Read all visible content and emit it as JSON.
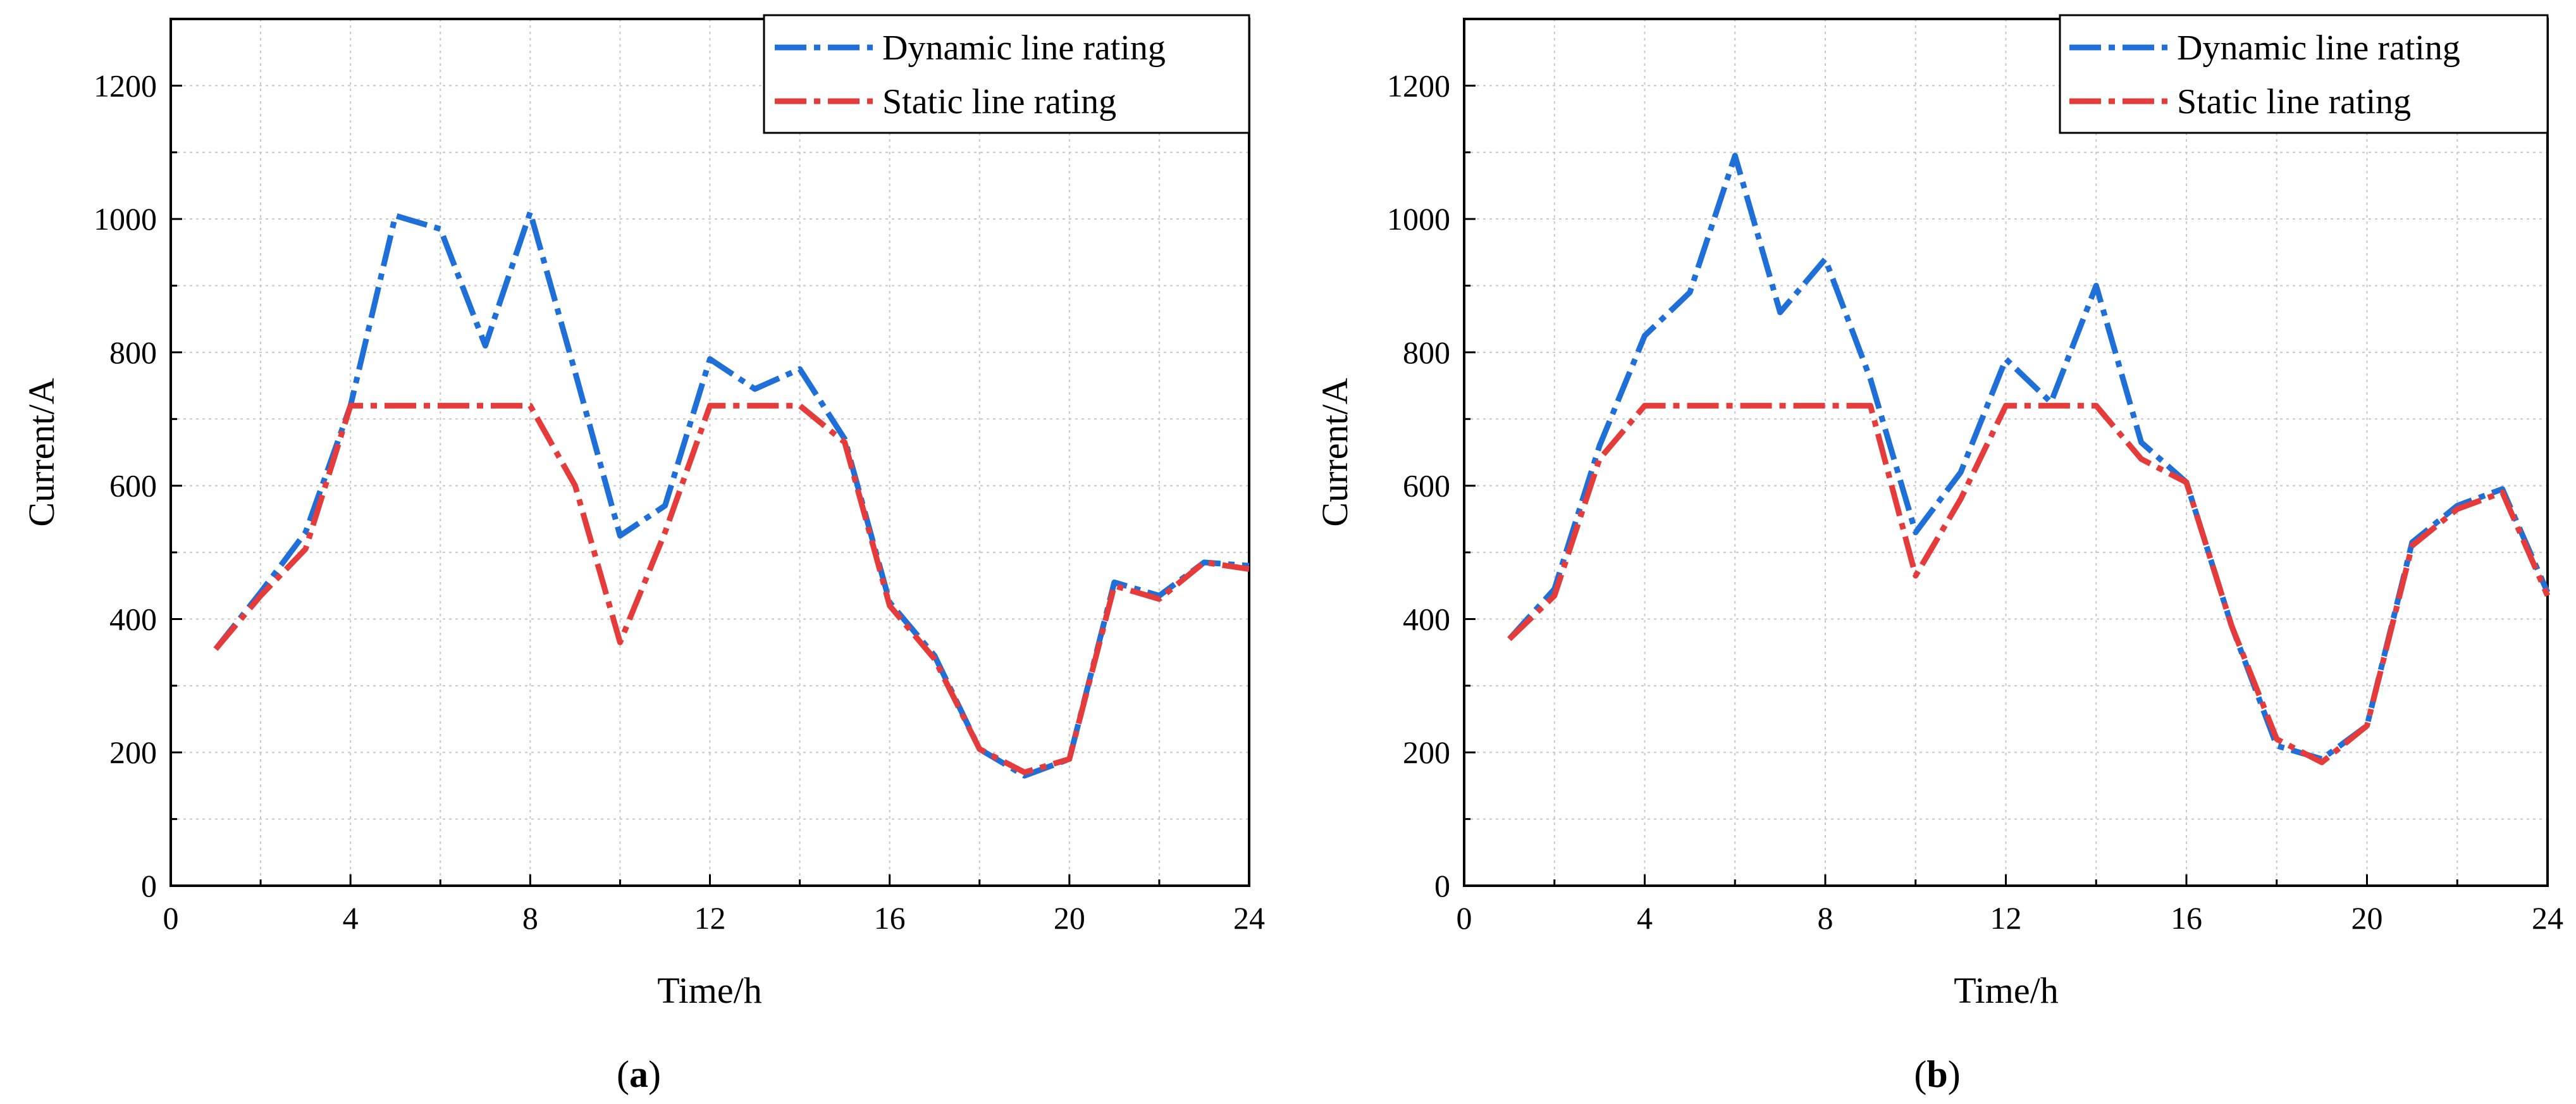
{
  "chart_data": [
    {
      "type": "line",
      "panel_label": "a",
      "xlabel": "Time/h",
      "ylabel": "Current/A",
      "xlim": [
        0,
        24
      ],
      "ylim": [
        0,
        1300
      ],
      "xticks": [
        0,
        4,
        8,
        12,
        16,
        20,
        24
      ],
      "yticks": [
        0,
        200,
        400,
        600,
        800,
        1000,
        1200
      ],
      "grid": true,
      "legend_position": "top-right",
      "series": [
        {
          "name": "Dynamic line rating",
          "color": "#1f6fd8",
          "style": "dash-dot",
          "x": [
            1,
            2,
            3,
            4,
            5,
            6,
            7,
            8,
            9,
            10,
            11,
            12,
            13,
            14,
            15,
            16,
            17,
            18,
            19,
            20,
            21,
            22,
            23,
            24
          ],
          "values": [
            355,
            440,
            530,
            720,
            1005,
            985,
            810,
            1010,
            770,
            525,
            570,
            790,
            745,
            775,
            670,
            425,
            345,
            205,
            165,
            190,
            455,
            435,
            485,
            480
          ]
        },
        {
          "name": "Static line rating",
          "color": "#e63b3b",
          "style": "dash-dot",
          "x": [
            1,
            2,
            3,
            4,
            5,
            6,
            7,
            8,
            9,
            10,
            11,
            12,
            13,
            14,
            15,
            16,
            17,
            18,
            19,
            20,
            21,
            22,
            23,
            24
          ],
          "values": [
            355,
            435,
            505,
            720,
            720,
            720,
            720,
            720,
            600,
            365,
            530,
            720,
            720,
            720,
            665,
            420,
            340,
            205,
            170,
            190,
            450,
            430,
            485,
            475
          ]
        }
      ]
    },
    {
      "type": "line",
      "panel_label": "b",
      "xlabel": "Time/h",
      "ylabel": "Current/A",
      "xlim": [
        0,
        24
      ],
      "ylim": [
        0,
        1300
      ],
      "xticks": [
        0,
        4,
        8,
        12,
        16,
        20,
        24
      ],
      "yticks": [
        0,
        200,
        400,
        600,
        800,
        1000,
        1200
      ],
      "grid": true,
      "legend_position": "top-right",
      "series": [
        {
          "name": "Dynamic line rating",
          "color": "#1f6fd8",
          "style": "dash-dot",
          "x": [
            1,
            2,
            3,
            4,
            5,
            6,
            7,
            8,
            9,
            10,
            11,
            12,
            13,
            14,
            15,
            16,
            17,
            18,
            19,
            20,
            21,
            22,
            23,
            24
          ],
          "values": [
            370,
            445,
            660,
            825,
            890,
            1095,
            860,
            940,
            760,
            530,
            620,
            790,
            725,
            900,
            665,
            605,
            390,
            210,
            190,
            240,
            515,
            570,
            595,
            440
          ]
        },
        {
          "name": "Static line rating",
          "color": "#e63b3b",
          "style": "dash-dot",
          "x": [
            1,
            2,
            3,
            4,
            5,
            6,
            7,
            8,
            9,
            10,
            11,
            12,
            13,
            14,
            15,
            16,
            17,
            18,
            19,
            20,
            21,
            22,
            23,
            24
          ],
          "values": [
            370,
            435,
            640,
            720,
            720,
            720,
            720,
            720,
            720,
            465,
            580,
            720,
            720,
            720,
            640,
            605,
            390,
            220,
            185,
            240,
            510,
            565,
            590,
            435
          ]
        }
      ]
    }
  ]
}
